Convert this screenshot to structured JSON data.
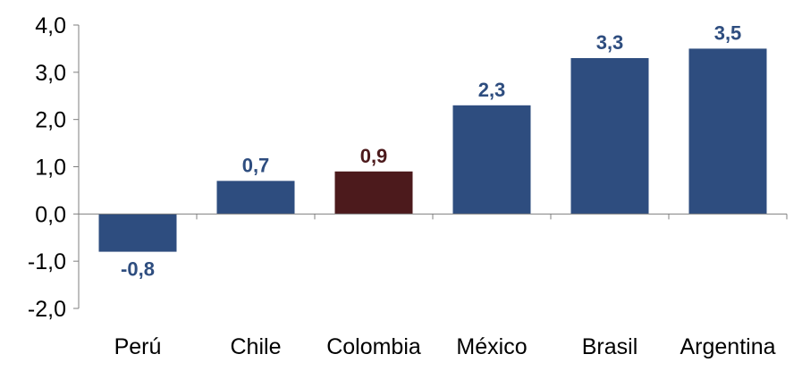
{
  "chart_data": {
    "type": "bar",
    "categories": [
      "Perú",
      "Chile",
      "Colombia",
      "México",
      "Brasil",
      "Argentina"
    ],
    "values": [
      -0.8,
      0.7,
      0.9,
      2.3,
      3.3,
      3.5
    ],
    "value_labels": [
      "-0,8",
      "0,7",
      "0,9",
      "2,3",
      "3,3",
      "3,5"
    ],
    "colors": [
      "#2e4d7f",
      "#2e4d7f",
      "#4c1a1c",
      "#2e4d7f",
      "#2e4d7f",
      "#2e4d7f"
    ],
    "label_colors": [
      "#2e4d7f",
      "#2e4d7f",
      "#4c1a1c",
      "#2e4d7f",
      "#2e4d7f",
      "#2e4d7f"
    ],
    "y_ticks": [
      4.0,
      3.0,
      2.0,
      1.0,
      0.0,
      -1.0,
      -2.0
    ],
    "y_tick_labels": [
      "4,0",
      "3,0",
      "2,0",
      "1,0",
      "0,0",
      "-1,0",
      "-2,0"
    ],
    "ylim": [
      -2.0,
      4.0
    ],
    "title": "",
    "xlabel": "",
    "ylabel": "",
    "grid": false,
    "legend": "none"
  }
}
